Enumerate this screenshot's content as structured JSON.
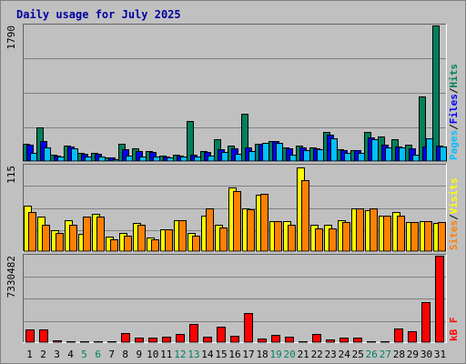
{
  "chart_data": {
    "type": "bar",
    "title": "Daily usage for July 2025",
    "categories": [
      "1",
      "2",
      "3",
      "4",
      "5",
      "6",
      "7",
      "8",
      "9",
      "10",
      "11",
      "12",
      "13",
      "14",
      "15",
      "16",
      "17",
      "18",
      "19",
      "20",
      "21",
      "22",
      "23",
      "24",
      "25",
      "26",
      "27",
      "28",
      "29",
      "30",
      "31"
    ],
    "weekend_days": [
      "5",
      "6",
      "12",
      "13",
      "19",
      "20",
      "26",
      "27"
    ],
    "panels": [
      {
        "id": "hits-files-pages",
        "max_label": "1790",
        "ylim": [
          0,
          1790
        ],
        "grid": true,
        "right_labels": [
          "Pages",
          "/",
          "Files",
          "/",
          "Hits"
        ],
        "series": [
          {
            "name": "Hits",
            "color": "#00805c",
            "values": [
              225,
              450,
              80,
              200,
              105,
              105,
              50,
              225,
              170,
              130,
              70,
              80,
              530,
              130,
              290,
              210,
              630,
              230,
              265,
              180,
              200,
              175,
              390,
              160,
              150,
              390,
              320,
              285,
              220,
              850,
              1790
            ]
          },
          {
            "name": "Files",
            "color": "#0000ff",
            "values": [
              220,
              270,
              75,
              195,
              100,
              100,
              45,
              160,
              130,
              120,
              65,
              75,
              85,
              125,
              155,
              165,
              175,
              230,
              260,
              170,
              175,
              170,
              350,
              150,
              140,
              310,
              215,
              195,
              170,
              190,
              200
            ]
          },
          {
            "name": "Pages",
            "color": "#00c0ff",
            "values": [
              105,
              185,
              55,
              165,
              65,
              65,
              30,
              75,
              65,
              60,
              45,
              60,
              60,
              75,
              120,
              100,
              130,
              235,
              240,
              80,
              140,
              160,
              300,
              110,
              110,
              290,
              180,
              180,
              90,
              300,
              190
            ]
          }
        ]
      },
      {
        "id": "visits-sites",
        "max_label": "115",
        "ylim": [
          0,
          115
        ],
        "grid": true,
        "right_labels": [
          "Sites",
          "/",
          "Visits"
        ],
        "series": [
          {
            "name": "Visits",
            "color": "#ffff00",
            "values": [
              61,
              46,
              28,
              42,
              23,
              50,
              19,
              25,
              38,
              18,
              29,
              41,
              24,
              48,
              35,
              86,
              58,
              76,
              40,
              40,
              112,
              35,
              36,
              41,
              58,
              55,
              48,
              53,
              39,
              40,
              38
            ]
          },
          {
            "name": "Sites",
            "color": "#ff8000",
            "values": [
              52,
              36,
              24,
              36,
              46,
              47,
              16,
              21,
              35,
              16,
              29,
              42,
              21,
              58,
              32,
              81,
              56,
              77,
              40,
              36,
              96,
              30,
              31,
              39,
              58,
              58,
              48,
              48,
              39,
              40,
              39
            ]
          }
        ]
      },
      {
        "id": "kbytes",
        "max_label": "7330482",
        "ylim": [
          0,
          7330482
        ],
        "grid": true,
        "right_labels": [
          "kB",
          "F"
        ],
        "series": [
          {
            "name": "kB F",
            "color": "#ff0000",
            "values": [
              1050000,
              1050000,
              150000,
              90000,
              90000,
              90000,
              90000,
              750000,
              400000,
              420000,
              450000,
              660000,
              1580000,
              500000,
              1350000,
              550000,
              2480000,
              280000,
              600000,
              500000,
              50000,
              700000,
              250000,
              400000,
              350000,
              100000,
              100000,
              1150000,
              900000,
              3400000,
              7330482
            ]
          }
        ]
      }
    ]
  }
}
